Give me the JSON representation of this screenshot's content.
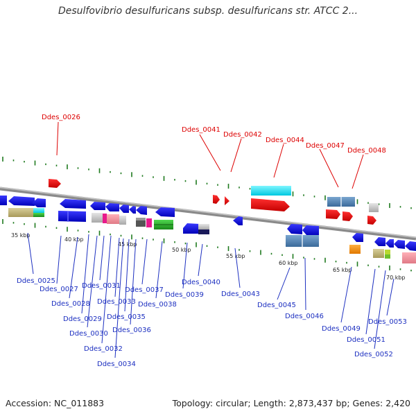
{
  "title": "Desulfovibrio desulfuricans subsp. desulfuricans str. ATCC 2...",
  "footer": {
    "accession": "Accession: NC_011883",
    "summary": "Topology: circular; Length: 2,873,437 bp; Genes: 2,420"
  },
  "colors": {
    "upper_label": "#dd0000",
    "lower_label": "#1c2fc0",
    "backbone": "#8a8a8a",
    "tick": "#1e7a1e"
  },
  "scale_labels": [
    "35 kbp",
    "40 kbp",
    "45 kbp",
    "50 kbp",
    "55 kbp",
    "60 kbp",
    "65 kbp",
    "70 kbp"
  ],
  "upper_genes": [
    "Ddes_0026",
    "Ddes_0041",
    "Ddes_0042",
    "Ddes_0044",
    "Ddes_0047",
    "Ddes_0048"
  ],
  "lower_genes": [
    "Ddes_0025",
    "Ddes_0027",
    "Ddes_0028",
    "Ddes_0029",
    "Ddes_0030",
    "Ddes_0031",
    "Ddes_0032",
    "Ddes_0033",
    "Ddes_0034",
    "Ddes_0035",
    "Ddes_0036",
    "Ddes_0037",
    "Ddes_0038",
    "Ddes_0039",
    "Ddes_0040",
    "Ddes_0043",
    "Ddes_0045",
    "Ddes_0046",
    "Ddes_0049",
    "Ddes_0051",
    "Ddes_0052",
    "Ddes_0053"
  ]
}
